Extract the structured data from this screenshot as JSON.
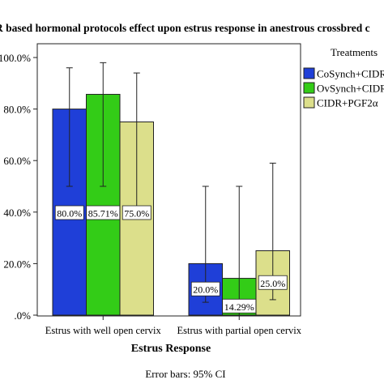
{
  "chart_data": {
    "type": "bar",
    "title": "R based hormonal protocols effect upon estrus response in anestrous crossbred c",
    "xlabel": "Estrus Response",
    "ylabel": "",
    "footnote": "Error bars: 95% CI",
    "ylim": [
      0,
      100
    ],
    "yticks": [
      0,
      20,
      40,
      60,
      80,
      100
    ],
    "ytick_labels": [
      ".0%",
      "20.0%",
      "40.0%",
      "60.0%",
      "80.0%",
      "100.0%"
    ],
    "categories": [
      "Estrus with well open cervix",
      "Estrus with partial open cervix"
    ],
    "legend_title": "Treatments",
    "legend_position": "right",
    "series": [
      {
        "name": "CoSynch+CIDR",
        "color": "#1f3fd8",
        "values": [
          80.0,
          20.0
        ],
        "labels": [
          "80.0%",
          "20.0%"
        ],
        "ci_low": [
          50,
          5
        ],
        "ci_high": [
          96,
          50
        ]
      },
      {
        "name": "OvSynch+CIDR",
        "color": "#33cc17",
        "values": [
          85.71,
          14.29
        ],
        "labels": [
          "85.71%",
          "14.29%"
        ],
        "ci_low": [
          50,
          0
        ],
        "ci_high": [
          98,
          50
        ]
      },
      {
        "name": "CIDR+PGF2α",
        "color": "#dcdf8b",
        "values": [
          75.0,
          25.0
        ],
        "labels": [
          "75.0%",
          "25.0%"
        ],
        "ci_low": [
          41,
          6
        ],
        "ci_high": [
          94,
          59
        ]
      }
    ],
    "grid": false
  }
}
